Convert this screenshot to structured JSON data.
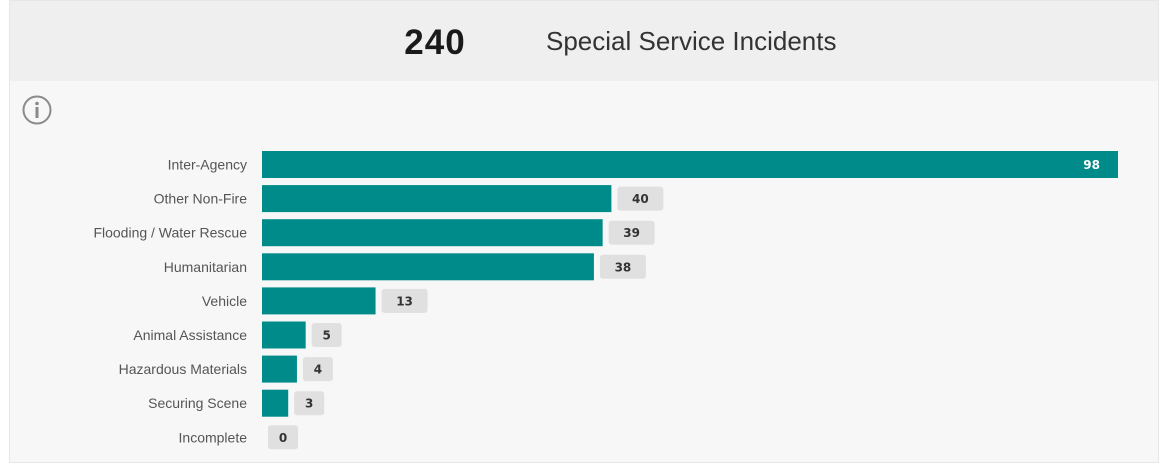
{
  "header": {
    "count": "240",
    "title": "Special Service Incidents"
  },
  "icons": {
    "info": "info-circle-icon"
  },
  "colors": {
    "bar": "#008b8b",
    "badge": "#e0e0e0",
    "header_bg": "#efefef",
    "panel_bg": "#f7f7f7"
  },
  "chart_data": {
    "type": "bar",
    "orientation": "horizontal",
    "categories": [
      "Inter-Agency",
      "Other Non-Fire",
      "Flooding / Water Rescue",
      "Humanitarian",
      "Vehicle",
      "Animal Assistance",
      "Hazardous Materials",
      "Securing Scene",
      "Incomplete"
    ],
    "values": [
      98,
      40,
      39,
      38,
      13,
      5,
      4,
      3,
      0
    ],
    "xlim": [
      0,
      98
    ],
    "grid": false,
    "legend": "none"
  }
}
